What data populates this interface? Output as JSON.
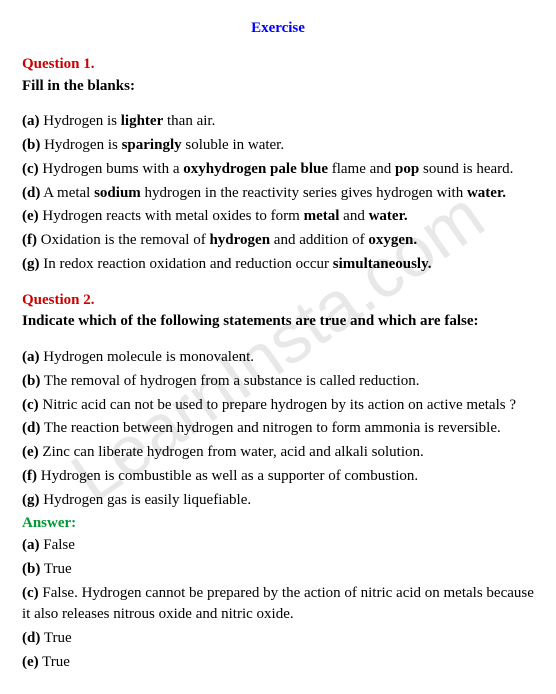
{
  "watermark_text": "LearnInsta.com",
  "exercise_title": "Exercise",
  "q1": {
    "label": "Question 1.",
    "prompt": "Fill in the blanks:",
    "a": {
      "letter": "(a)",
      "p1": " Hydrogen is ",
      "b1": "lighter",
      "p2": " than air."
    },
    "b": {
      "letter": "(b)",
      "p1": " Hydrogen is ",
      "b1": "sparingly",
      "p2": " soluble in water."
    },
    "c": {
      "letter": "(c)",
      "p1": " Hydrogen bums with a ",
      "b1": "oxyhydrogen pale blue",
      "p2": " flame and ",
      "b2": "pop",
      "p3": " sound is heard."
    },
    "d": {
      "letter": "(d)",
      "p1": " A metal ",
      "b1": "sodium",
      "p2": " hydrogen in the reactivity series gives hydrogen with ",
      "b2": "water."
    },
    "e": {
      "letter": "(e)",
      "p1": " Hydrogen reacts with metal oxides to form ",
      "b1": "metal",
      "p2": " and ",
      "b2": "water."
    },
    "f": {
      "letter": "(f)",
      "p1": " Oxidation is the removal of ",
      "b1": "hydrogen",
      "p2": " and addition of ",
      "b2": "oxygen."
    },
    "g": {
      "letter": "(g)",
      "p1": " In redox reaction oxidation and reduction occur ",
      "b1": "simultaneously."
    }
  },
  "q2": {
    "label": "Question 2.",
    "prompt": "Indicate which of the following statements are true and which are false:",
    "a": {
      "letter": "(a)",
      "text": " Hydrogen molecule is monovalent."
    },
    "b": {
      "letter": "(b)",
      "text": " The removal of hydrogen from a substance is called reduction."
    },
    "c": {
      "letter": "(c)",
      "text": " Nitric acid can not be used to prepare hydrogen by its action on active metals ?"
    },
    "d": {
      "letter": "(d)",
      "text": " The reaction between hydrogen and nitrogen to form ammonia is reversible."
    },
    "e": {
      "letter": "(e)",
      "text": " Zinc can liberate hydrogen from water, acid and alkali solution."
    },
    "f": {
      "letter": "(f)",
      "text": " Hydrogen is combustible as well as a supporter of combustion."
    },
    "g": {
      "letter": "(g)",
      "text": " Hydrogen gas is easily liquefiable."
    },
    "answer_label": "Answer:",
    "ans_a": {
      "letter": "(a)",
      "text": " False"
    },
    "ans_b": {
      "letter": "(b)",
      "text": " True"
    },
    "ans_c": {
      "letter": "(c)",
      "text": " False. Hydrogen cannot be prepared by the action of nitric acid on metals because it also releases nitrous oxide and nitric oxide."
    },
    "ans_d": {
      "letter": "(d)",
      "text": " True"
    },
    "ans_e": {
      "letter": "(e)",
      "text": " True"
    }
  }
}
